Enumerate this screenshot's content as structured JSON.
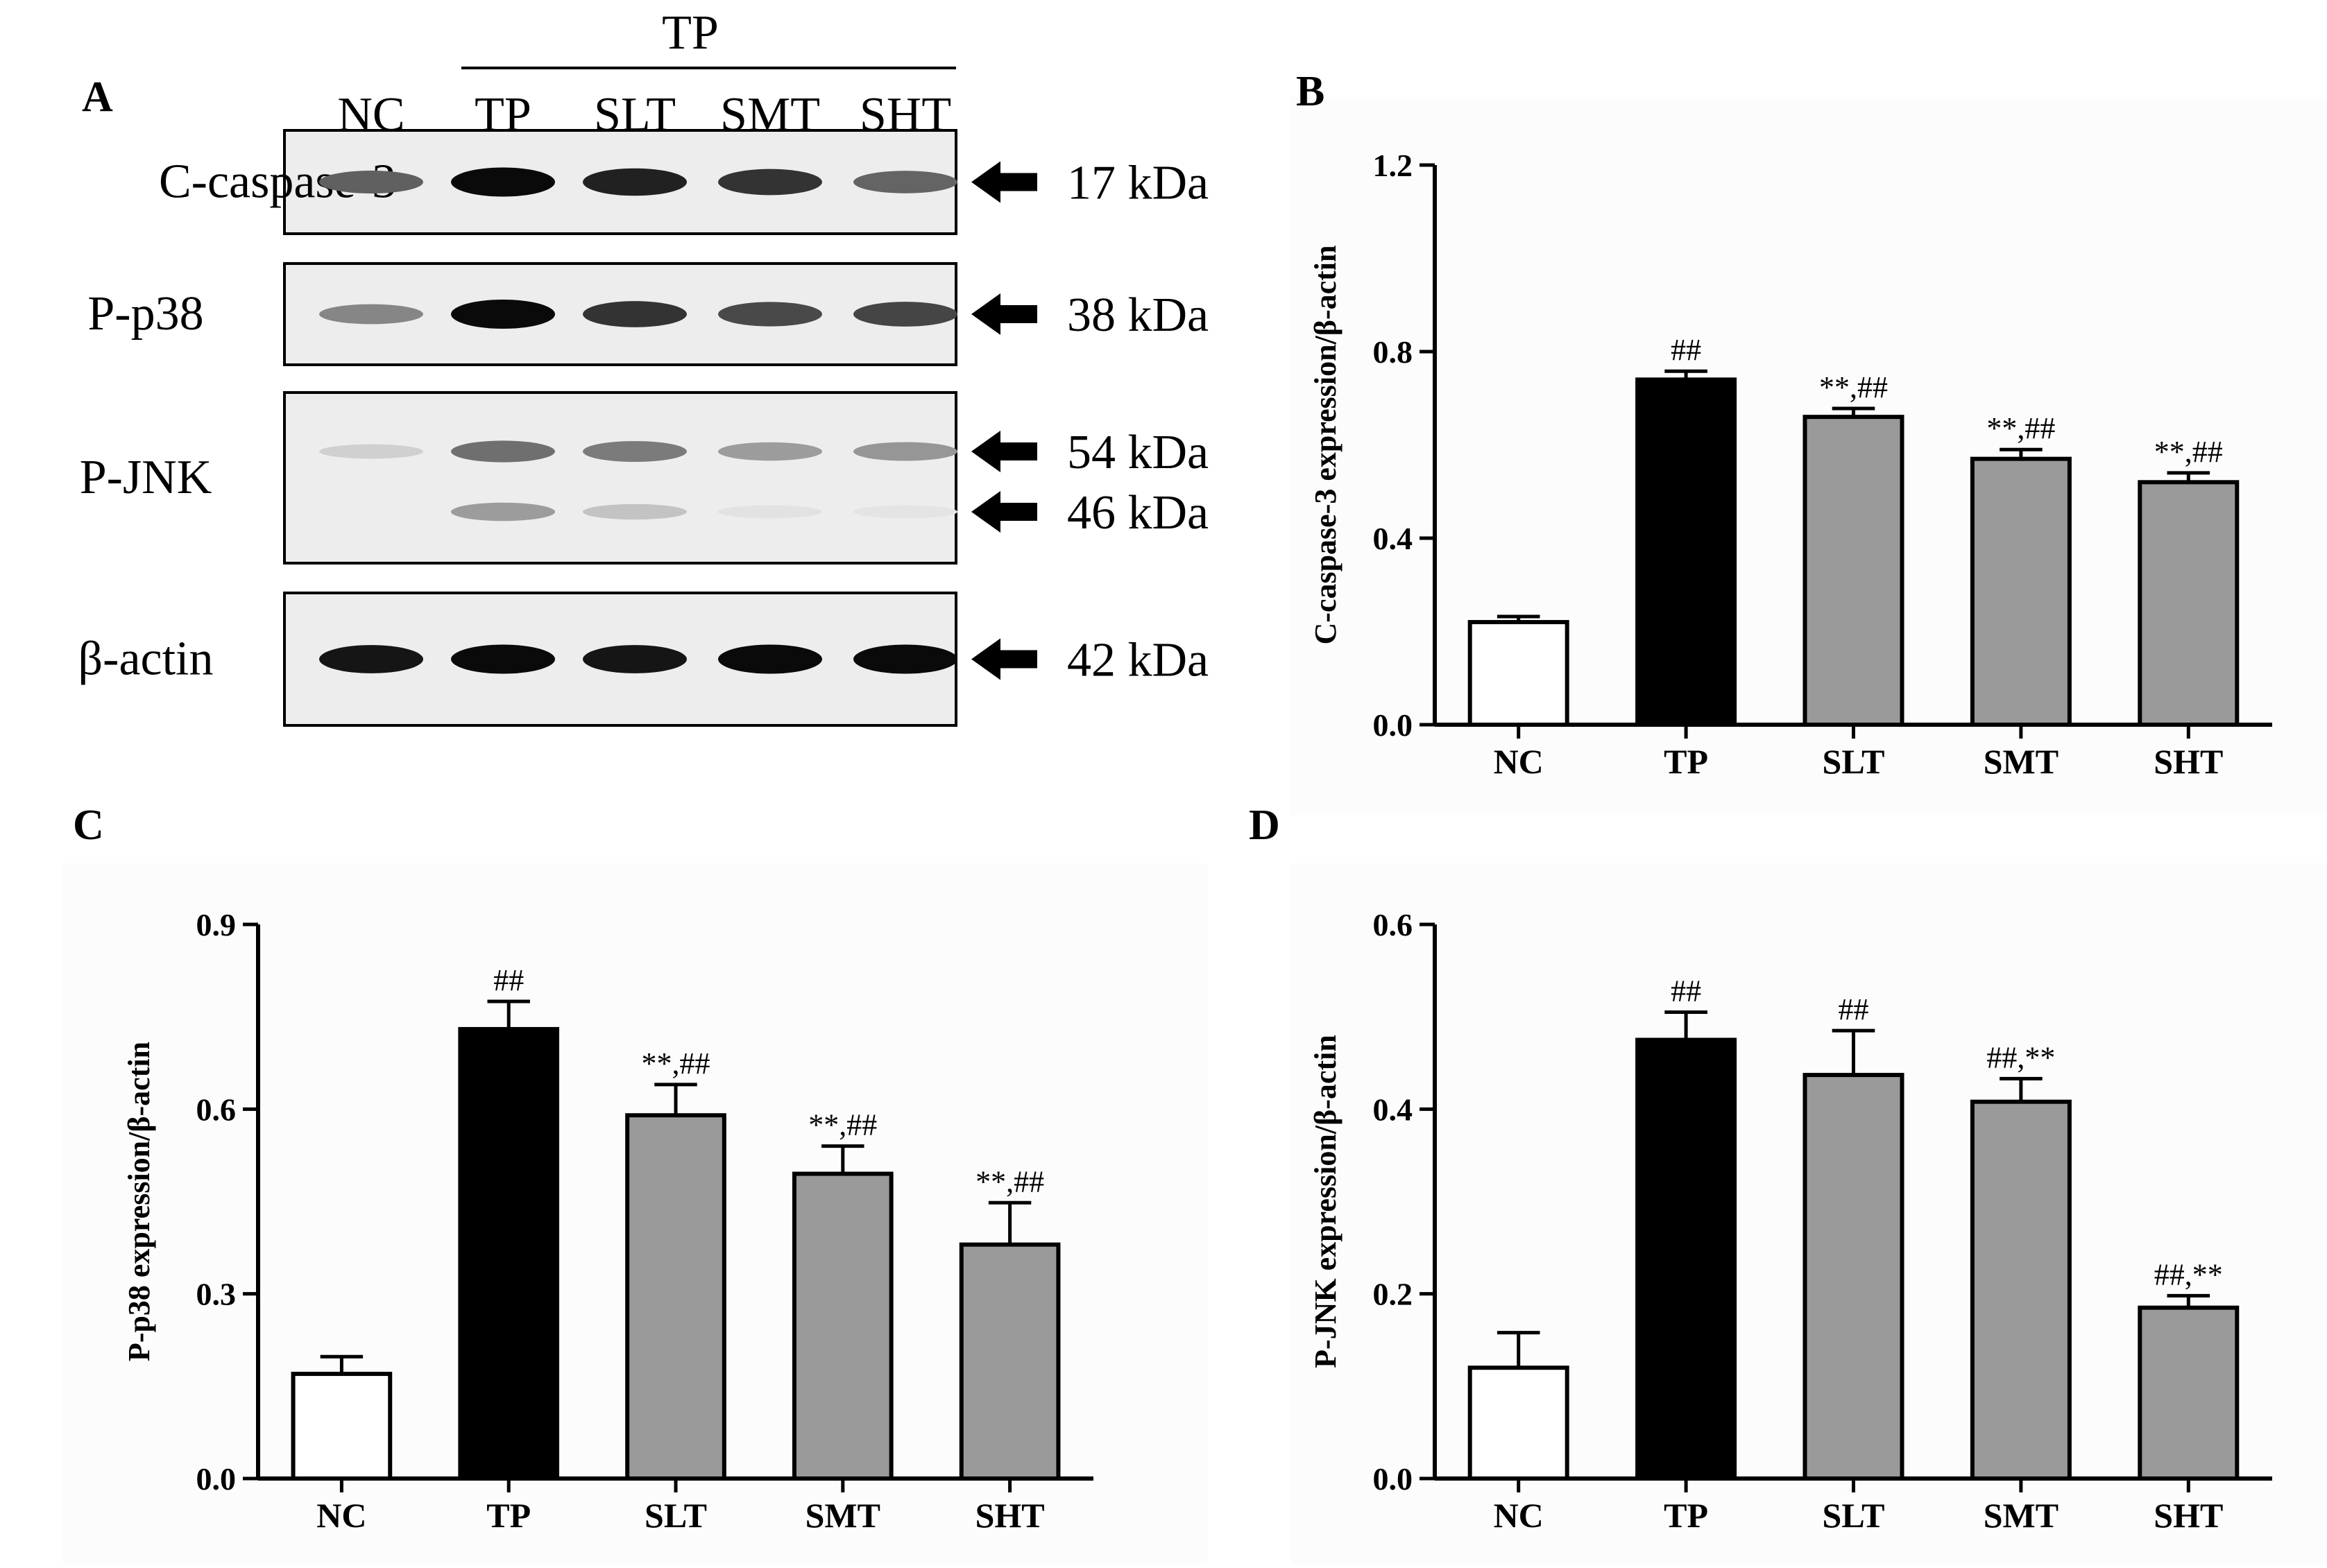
{
  "figure": {
    "panel_labels": {
      "a": "A",
      "b": "B",
      "c": "C",
      "d": "D"
    }
  },
  "blot": {
    "group_label": "TP",
    "lanes": [
      "NC",
      "TP",
      "SLT",
      "SMT",
      "SHT"
    ],
    "rows": [
      {
        "label": "C-caspase-3",
        "weights": [
          "17 kDa"
        ],
        "intensity": [
          0.62,
          1.0,
          0.9,
          0.82,
          0.6
        ]
      },
      {
        "label": "P-p38",
        "weights": [
          "38 kDa"
        ],
        "intensity": [
          0.45,
          1.0,
          0.82,
          0.72,
          0.74
        ]
      },
      {
        "label": "P-JNK",
        "weights": [
          "54 kDa",
          "46 kDa"
        ],
        "intensity": [
          0.12,
          0.55,
          0.5,
          0.35,
          0.38
        ],
        "intensity_lower": [
          0.0,
          0.35,
          0.18,
          0.04,
          0.03
        ]
      },
      {
        "label": "β-actin",
        "weights": [
          "42 kDa"
        ],
        "intensity": [
          0.95,
          1.0,
          0.95,
          1.0,
          1.0
        ]
      }
    ]
  },
  "chart_data": [
    {
      "type": "bar",
      "panel": "B",
      "title": "",
      "xlabel": "",
      "ylabel": "C-caspase-3 expression/β-actin",
      "categories": [
        "NC",
        "TP",
        "SLT",
        "SMT",
        "SHT"
      ],
      "values": [
        0.22,
        0.74,
        0.66,
        0.57,
        0.52
      ],
      "errors": [
        0.012,
        0.018,
        0.018,
        0.02,
        0.02
      ],
      "annotations": [
        "",
        "##",
        "**,##",
        "**,##",
        "**,##"
      ],
      "bar_colors": [
        "#ffffff",
        "#000000",
        "#9a9a9a",
        "#9a9a9a",
        "#9a9a9a"
      ],
      "ylim": [
        0,
        1.2
      ],
      "yticks": [
        "0.0",
        "0.4",
        "0.8",
        "1.2"
      ],
      "grid": false
    },
    {
      "type": "bar",
      "panel": "C",
      "title": "",
      "xlabel": "",
      "ylabel": "P-p38 expression/β-actin",
      "categories": [
        "NC",
        "TP",
        "SLT",
        "SMT",
        "SHT"
      ],
      "values": [
        0.17,
        0.73,
        0.59,
        0.495,
        0.38
      ],
      "errors": [
        0.028,
        0.045,
        0.05,
        0.045,
        0.068
      ],
      "annotations": [
        "",
        "##",
        "**,##",
        "**,##",
        "**,##"
      ],
      "bar_colors": [
        "#ffffff",
        "#000000",
        "#9a9a9a",
        "#9a9a9a",
        "#9a9a9a"
      ],
      "ylim": [
        0,
        0.9
      ],
      "yticks": [
        "0.0",
        "0.3",
        "0.6",
        "0.9"
      ],
      "grid": false
    },
    {
      "type": "bar",
      "panel": "D",
      "title": "",
      "xlabel": "",
      "ylabel": "P-JNK expression/β-actin",
      "categories": [
        "NC",
        "TP",
        "SLT",
        "SMT",
        "SHT"
      ],
      "values": [
        0.12,
        0.475,
        0.437,
        0.408,
        0.185
      ],
      "errors": [
        0.038,
        0.03,
        0.048,
        0.025,
        0.013
      ],
      "annotations": [
        "",
        "##",
        "##",
        "##,**",
        "##,**"
      ],
      "bar_colors": [
        "#ffffff",
        "#000000",
        "#9a9a9a",
        "#9a9a9a",
        "#9a9a9a"
      ],
      "ylim": [
        0,
        0.6
      ],
      "yticks": [
        "0.0",
        "0.2",
        "0.4",
        "0.6"
      ],
      "grid": false
    }
  ]
}
